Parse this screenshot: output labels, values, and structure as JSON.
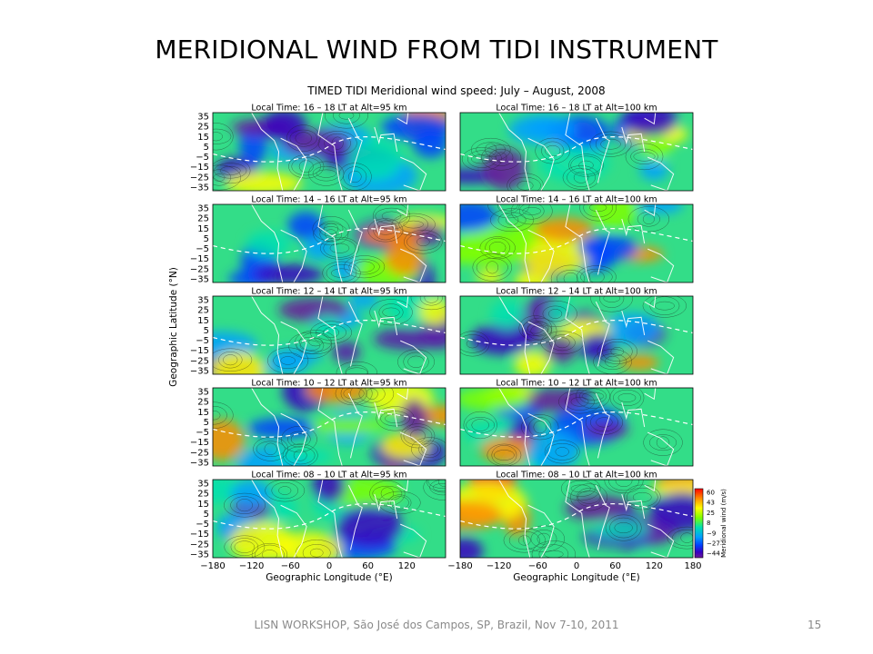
{
  "slide": {
    "title": "MERIDIONAL WIND FROM TIDI INSTRUMENT",
    "footer": "LISN WORKSHOP, São José dos Campos, SP, Brazil, Nov 7-10, 2011",
    "slide_number": "15"
  },
  "figure": {
    "main_title": "TIMED TIDI Meridional wind speed: July – August, 2008",
    "y_axis_label": "Geographic Latitude (°N)",
    "x_axis_label": "Geographic Longitude (°E)",
    "lat_ticks": [
      "35",
      "25",
      "15",
      "5",
      "−5",
      "−15",
      "−25",
      "−35"
    ],
    "lon_ticks": [
      "−180",
      "−120",
      "−60",
      "0",
      "60",
      "120"
    ],
    "lon_ticks_right": [
      "−180",
      "−120",
      "−60",
      "0",
      "60",
      "120",
      "180"
    ],
    "colorbar": {
      "label": "Meridional wind (m/s)",
      "ticks": [
        "60",
        "43",
        "25",
        "8",
        "−9",
        "−27",
        "−44"
      ],
      "colors": [
        "#ff0000",
        "#ff8c00",
        "#ffff00",
        "#7fff00",
        "#00e0b0",
        "#00a0ff",
        "#0040ff",
        "#3a00c0",
        "#6a1a9a"
      ]
    },
    "panels": [
      {
        "title": "Local Time: 16 – 18 LT at Alt=95 km",
        "col": 0,
        "row": 0
      },
      {
        "title": "Local Time: 16 – 18 LT at Alt=100 km",
        "col": 1,
        "row": 0
      },
      {
        "title": "Local Time: 14 – 16 LT at Alt=95 km",
        "col": 0,
        "row": 1
      },
      {
        "title": "Local Time: 14 – 16 LT at Alt=100 km",
        "col": 1,
        "row": 1
      },
      {
        "title": "Local Time: 12 – 14 LT at Alt=95 km",
        "col": 0,
        "row": 2
      },
      {
        "title": "Local Time: 12 – 14 LT at Alt=100 km",
        "col": 1,
        "row": 2
      },
      {
        "title": "Local Time: 10 – 12 LT at Alt=95 km",
        "col": 0,
        "row": 3
      },
      {
        "title": "Local Time: 10 – 12 LT at Alt=100 km",
        "col": 1,
        "row": 3
      },
      {
        "title": "Local Time: 08 – 10 LT at Alt=95 km",
        "col": 0,
        "row": 4
      },
      {
        "title": "Local Time: 08 – 10 LT at Alt=100 km",
        "col": 1,
        "row": 4
      }
    ]
  }
}
